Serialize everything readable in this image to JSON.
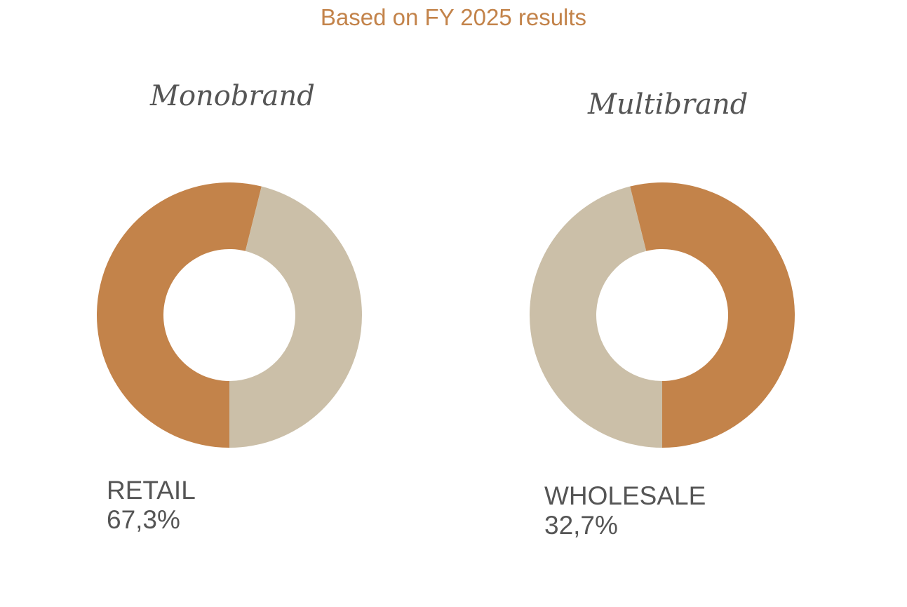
{
  "subtitle": "Based on FY 2025 results",
  "colors": {
    "primary": "#c3834a",
    "secondary": "#cbbfa8",
    "text": "#555555"
  },
  "chart_data": [
    {
      "type": "pie",
      "donut": true,
      "title": "Monobrand",
      "slices": [
        {
          "value": 53.9,
          "color": "#c3834a"
        },
        {
          "value": 46.1,
          "color": "#cbbfa8"
        }
      ],
      "highlight_label": "RETAIL",
      "highlight_value": "67,3%"
    },
    {
      "type": "pie",
      "donut": true,
      "title": "Multibrand",
      "slices": [
        {
          "value": 53.9,
          "color": "#c3834a"
        },
        {
          "value": 46.1,
          "color": "#cbbfa8"
        }
      ],
      "highlight_label": "WHOLESALE",
      "highlight_value": "32,7%"
    }
  ]
}
